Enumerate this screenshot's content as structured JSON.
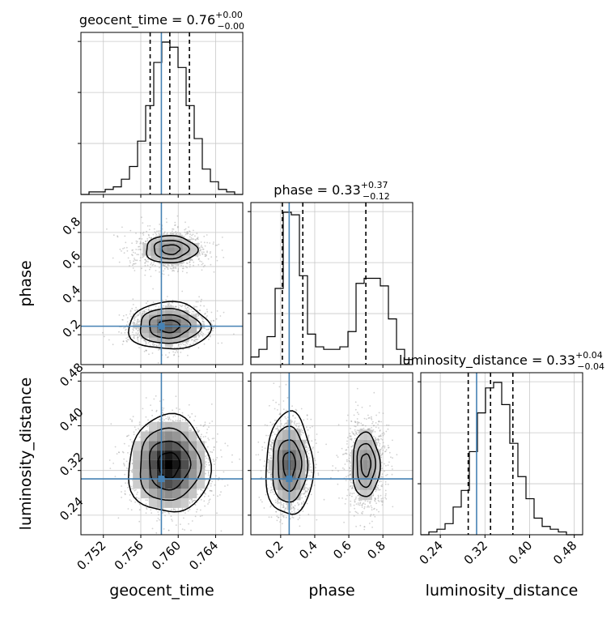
{
  "chart_data": {
    "type": "corner",
    "parameters": [
      {
        "name": "geocent_time",
        "xlabel": "geocent_time",
        "ylabel": "",
        "range": [
          0.7496,
          0.7669
        ],
        "ticks": [
          0.752,
          0.756,
          0.76,
          0.764
        ],
        "tick_labels": [
          "0.752",
          "0.756",
          "0.760",
          "0.764"
        ],
        "truth": 0.7582,
        "quantiles": [
          0.757,
          0.7591,
          0.7612
        ],
        "title_main": "geocent_time = 0.76",
        "title_sup": "+0.00",
        "title_sub": "−0.00",
        "hist_edges_start": 0.7496,
        "hist_bin_width": 0.000865,
        "hist_counts": [
          0,
          1,
          1,
          2,
          3,
          6,
          11,
          21,
          35,
          52,
          60,
          58,
          50,
          35,
          22,
          10,
          5,
          2,
          1,
          0
        ]
      },
      {
        "name": "phase",
        "xlabel": "phase",
        "ylabel": "phase",
        "range": [
          0.025,
          0.975
        ],
        "ticks": [
          0.2,
          0.4,
          0.6,
          0.8
        ],
        "tick_labels": [
          "0.2",
          "0.4",
          "0.6",
          "0.8"
        ],
        "truth": 0.25,
        "quantiles": [
          0.21,
          0.33,
          0.7
        ],
        "title_main": "phase = 0.33",
        "title_sup": "+0.37",
        "title_sub": "−0.12",
        "hist_edges_start": 0.025,
        "hist_bin_width": 0.0475,
        "hist_counts": [
          3,
          6,
          11,
          30,
          60,
          59,
          35,
          12,
          7,
          6,
          6,
          7,
          13,
          32,
          34,
          34,
          31,
          18,
          6,
          2
        ]
      },
      {
        "name": "luminosity_distance",
        "xlabel": "luminosity_distance",
        "ylabel": "luminosity_distance",
        "range": [
          0.205,
          0.495
        ],
        "ticks": [
          0.24,
          0.32,
          0.4,
          0.48
        ],
        "tick_labels": [
          "0.24",
          "0.32",
          "0.40",
          "0.48"
        ],
        "truth": 0.305,
        "quantiles": [
          0.29,
          0.33,
          0.37
        ],
        "title_main": "luminosity_distance = 0.33",
        "title_sup": "+0.04",
        "title_sub": "−0.04",
        "hist_edges_start": 0.205,
        "hist_bin_width": 0.0145,
        "hist_counts": [
          0,
          1,
          2,
          4,
          10,
          16,
          30,
          44,
          53,
          55,
          47,
          33,
          21,
          13,
          6,
          3,
          2,
          1,
          0,
          0
        ]
      }
    ],
    "pairs": [
      {
        "x_param": 0,
        "y_param": 1,
        "modes": [
          {
            "cx": 0.759,
            "cy": 0.25,
            "sx": 0.0019,
            "sy": 0.06,
            "weight": 0.62
          },
          {
            "cx": 0.7592,
            "cy": 0.7,
            "sx": 0.0019,
            "sy": 0.055,
            "weight": 0.38
          }
        ]
      },
      {
        "x_param": 0,
        "y_param": 2,
        "modes": [
          {
            "cx": 0.759,
            "cy": 0.33,
            "sx": 0.0019,
            "sy": 0.038,
            "weight": 1.0
          }
        ]
      },
      {
        "x_param": 1,
        "y_param": 2,
        "modes": [
          {
            "cx": 0.25,
            "cy": 0.33,
            "sx": 0.06,
            "sy": 0.04,
            "weight": 0.62
          },
          {
            "cx": 0.7,
            "cy": 0.33,
            "sx": 0.055,
            "sy": 0.04,
            "weight": 0.38
          }
        ]
      }
    ],
    "truth_color": "#4682b4",
    "grid": true,
    "legend": "none"
  }
}
